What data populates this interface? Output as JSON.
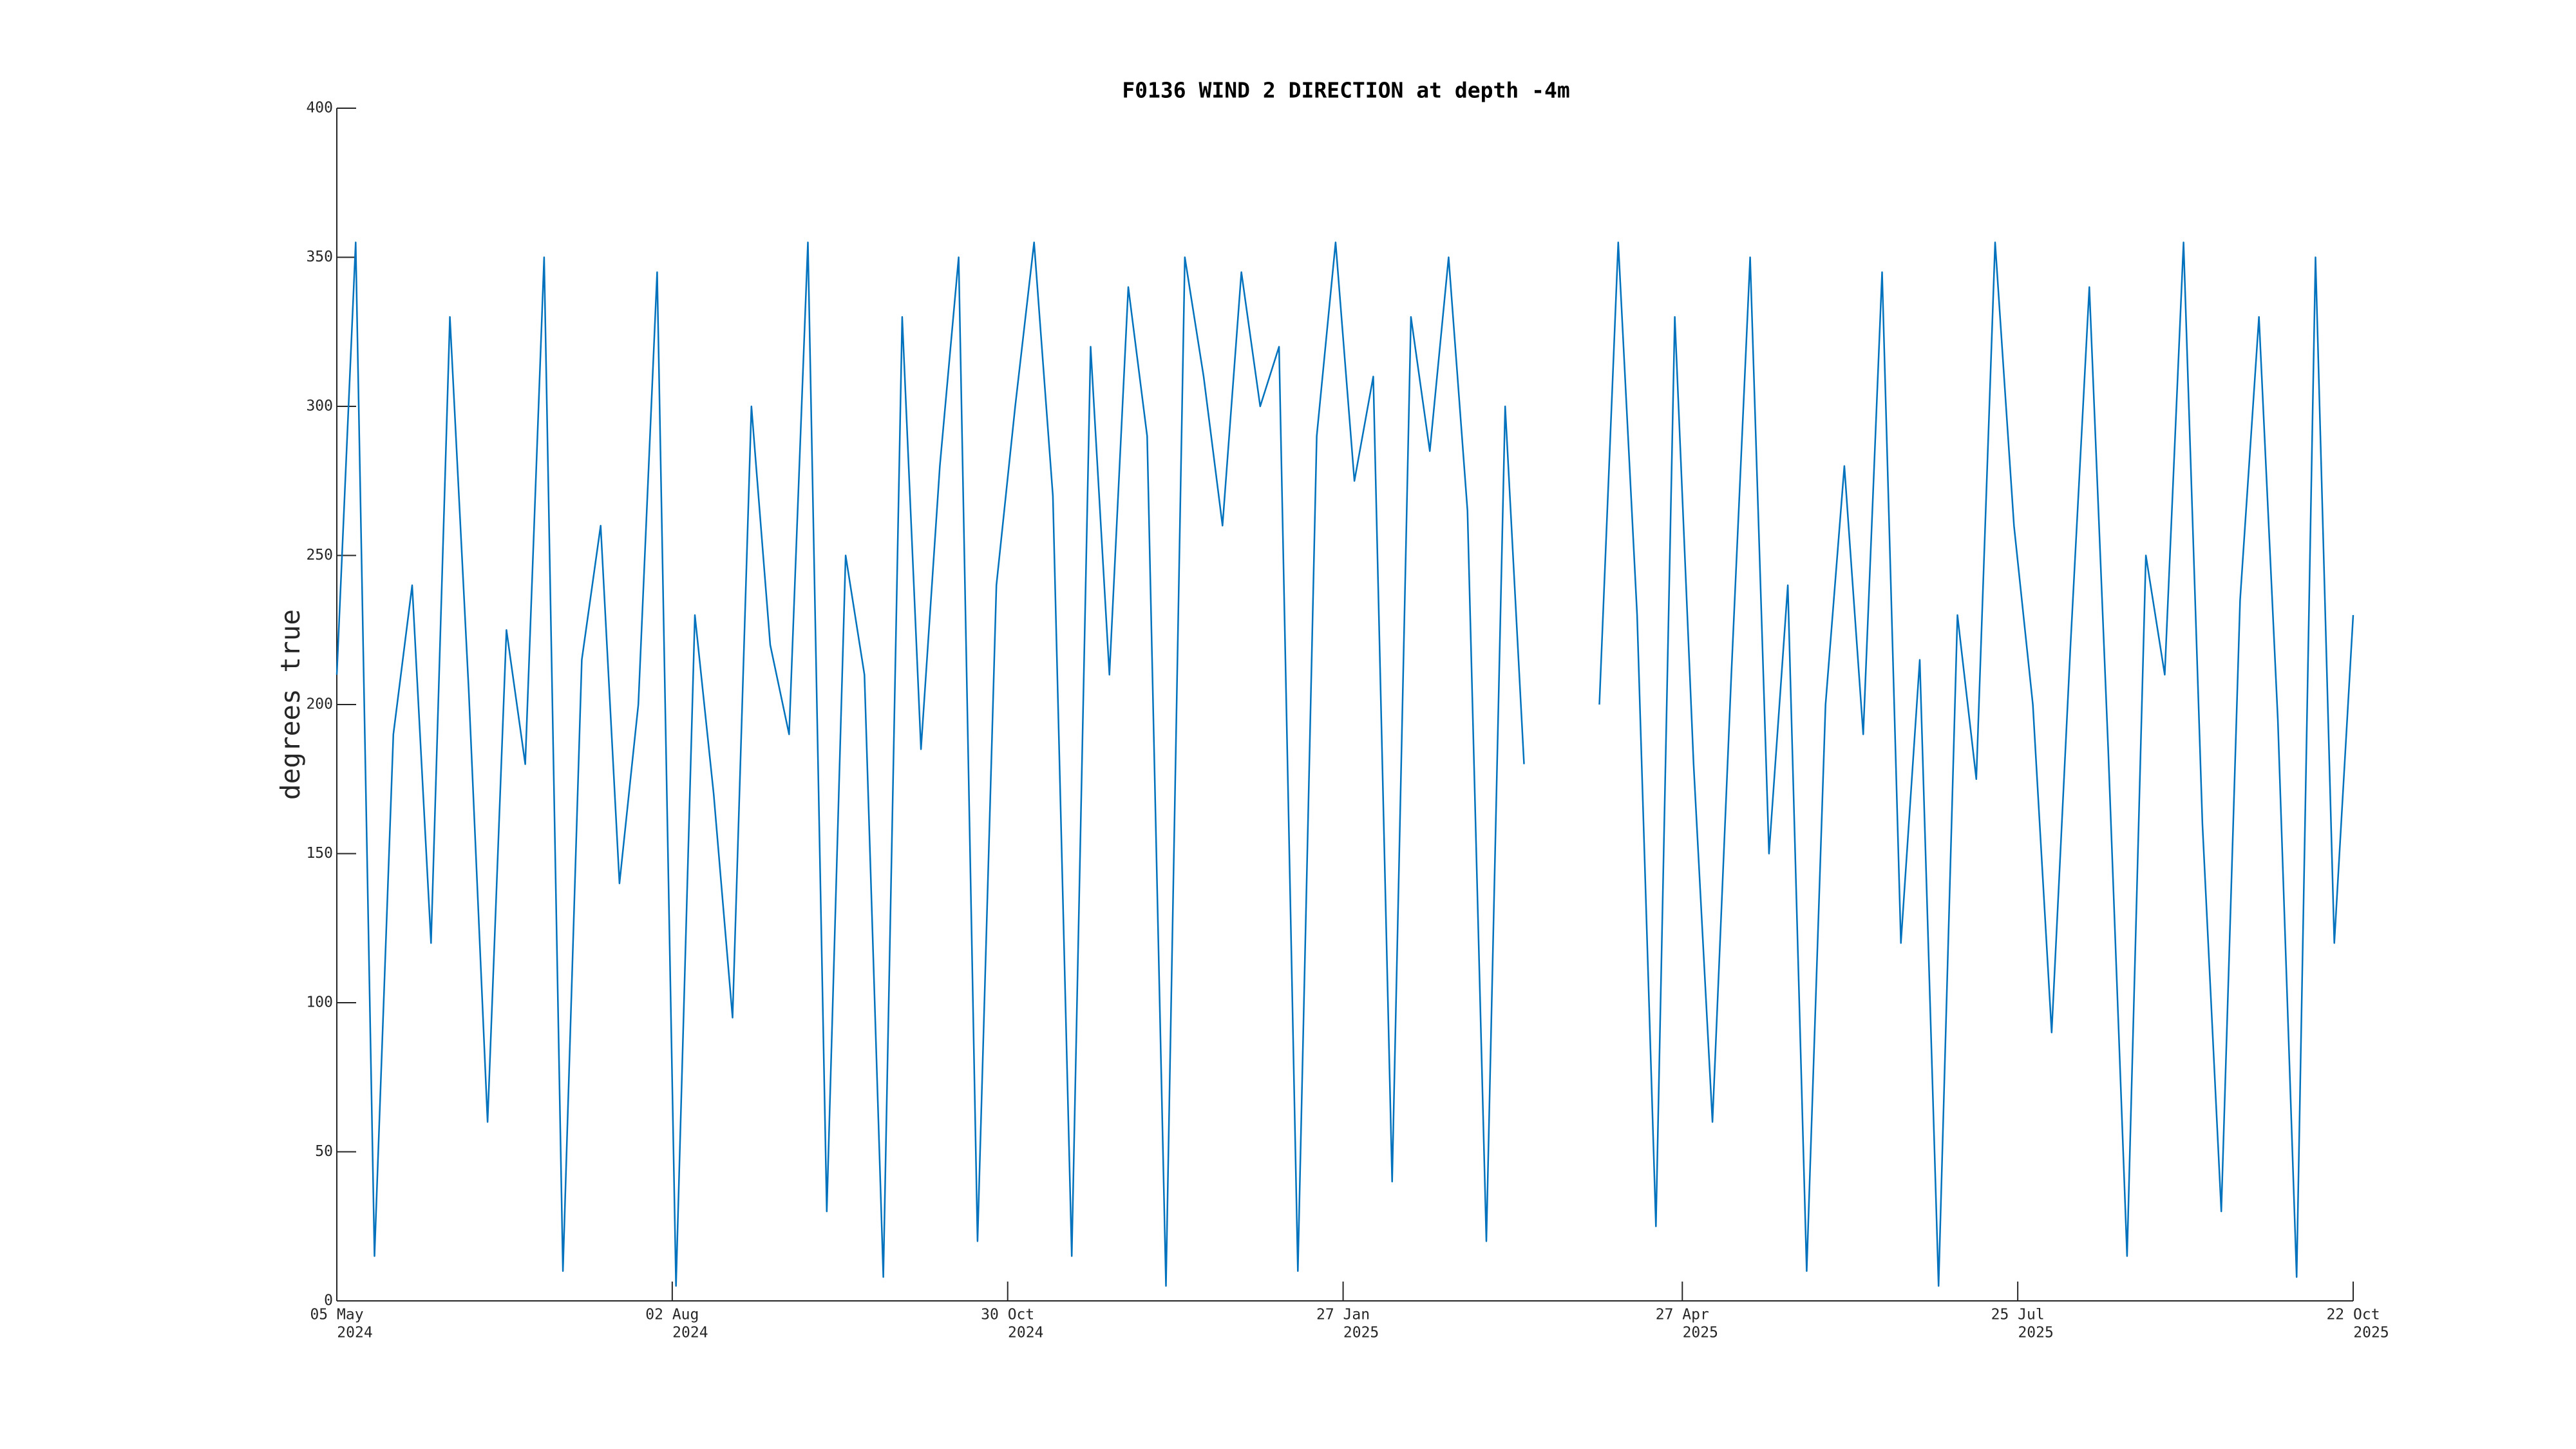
{
  "chart_data": {
    "type": "line",
    "title": "F0136 WIND 2 DIRECTION at depth -4m",
    "y_label": "degrees true",
    "color": "#0072BD",
    "x": [
      "2024-05-05",
      "2024-05-10",
      "2024-05-15",
      "2024-05-20",
      "2024-05-25",
      "2024-05-30",
      "2024-06-04",
      "2024-06-09",
      "2024-06-14",
      "2024-06-19",
      "2024-06-24",
      "2024-06-29",
      "2024-07-04",
      "2024-07-09",
      "2024-07-14",
      "2024-07-19",
      "2024-07-24",
      "2024-07-29",
      "2024-08-03",
      "2024-08-08",
      "2024-08-13",
      "2024-08-18",
      "2024-08-23",
      "2024-08-28",
      "2024-09-02",
      "2024-09-07",
      "2024-09-12",
      "2024-09-17",
      "2024-09-22",
      "2024-09-27",
      "2024-10-02",
      "2024-10-07",
      "2024-10-12",
      "2024-10-17",
      "2024-10-22",
      "2024-10-27",
      "2024-11-01",
      "2024-11-06",
      "2024-11-11",
      "2024-11-16",
      "2024-11-21",
      "2024-11-26",
      "2024-12-01",
      "2024-12-06",
      "2024-12-11",
      "2024-12-16",
      "2024-12-21",
      "2024-12-26",
      "2024-12-31",
      "2025-01-05",
      "2025-01-10",
      "2025-01-15",
      "2025-01-20",
      "2025-01-25",
      "2025-01-30",
      "2025-02-04",
      "2025-02-09",
      "2025-02-14",
      "2025-02-19",
      "2025-02-24",
      "2025-03-01",
      "2025-03-06",
      "2025-03-11",
      "2025-03-16",
      "2025-03-21",
      "2025-03-26",
      "2025-03-31",
      "2025-04-05",
      "2025-04-10",
      "2025-04-15",
      "2025-04-20",
      "2025-04-25",
      "2025-04-30",
      "2025-05-05",
      "2025-05-10",
      "2025-05-15",
      "2025-05-20",
      "2025-05-25",
      "2025-05-30",
      "2025-06-04",
      "2025-06-09",
      "2025-06-14",
      "2025-06-19",
      "2025-06-24",
      "2025-06-29",
      "2025-07-04",
      "2025-07-09",
      "2025-07-14",
      "2025-07-19",
      "2025-07-24",
      "2025-07-29",
      "2025-08-03",
      "2025-08-08",
      "2025-08-13",
      "2025-08-18",
      "2025-08-23",
      "2025-08-28",
      "2025-09-02",
      "2025-09-07",
      "2025-09-12",
      "2025-09-17",
      "2025-09-22",
      "2025-09-27",
      "2025-10-02",
      "2025-10-07",
      "2025-10-12",
      "2025-10-17",
      "2025-10-22"
    ],
    "values": [
      210,
      355,
      15,
      190,
      240,
      120,
      330,
      205,
      60,
      225,
      180,
      350,
      10,
      215,
      260,
      140,
      200,
      345,
      5,
      230,
      170,
      95,
      300,
      220,
      190,
      355,
      30,
      250,
      210,
      8,
      330,
      185,
      280,
      350,
      20,
      240,
      300,
      355,
      270,
      15,
      320,
      210,
      340,
      290,
      5,
      350,
      310,
      260,
      345,
      300,
      320,
      10,
      290,
      355,
      275,
      310,
      40,
      330,
      285,
      350,
      265,
      20,
      300,
      180,
      null,
      null,
      null,
      200,
      355,
      230,
      25,
      330,
      180,
      60,
      210,
      350,
      150,
      240,
      10,
      200,
      280,
      190,
      345,
      120,
      215,
      5,
      230,
      175,
      355,
      260,
      200,
      90,
      220,
      340,
      185,
      15,
      250,
      210,
      355,
      160,
      30,
      235,
      330,
      195,
      8,
      350,
      120,
      230
    ],
    "xlim": [
      "2024-05-05",
      "2025-10-22"
    ],
    "xticks": [
      {
        "value": "2024-05-05",
        "label": [
          "05 May",
          "2024"
        ]
      },
      {
        "value": "2024-08-02",
        "label": [
          "02 Aug",
          "2024"
        ]
      },
      {
        "value": "2024-10-30",
        "label": [
          "30 Oct",
          "2024"
        ]
      },
      {
        "value": "2025-01-27",
        "label": [
          "27 Jan",
          "2025"
        ]
      },
      {
        "value": "2025-04-27",
        "label": [
          "27 Apr",
          "2025"
        ]
      },
      {
        "value": "2025-07-25",
        "label": [
          "25 Jul",
          "2025"
        ]
      },
      {
        "value": "2025-10-22",
        "label": [
          "22 Oct",
          "2025"
        ]
      }
    ],
    "ylim": [
      0,
      400
    ],
    "yticks": [
      0,
      50,
      100,
      150,
      200,
      250,
      300,
      350,
      400
    ]
  }
}
